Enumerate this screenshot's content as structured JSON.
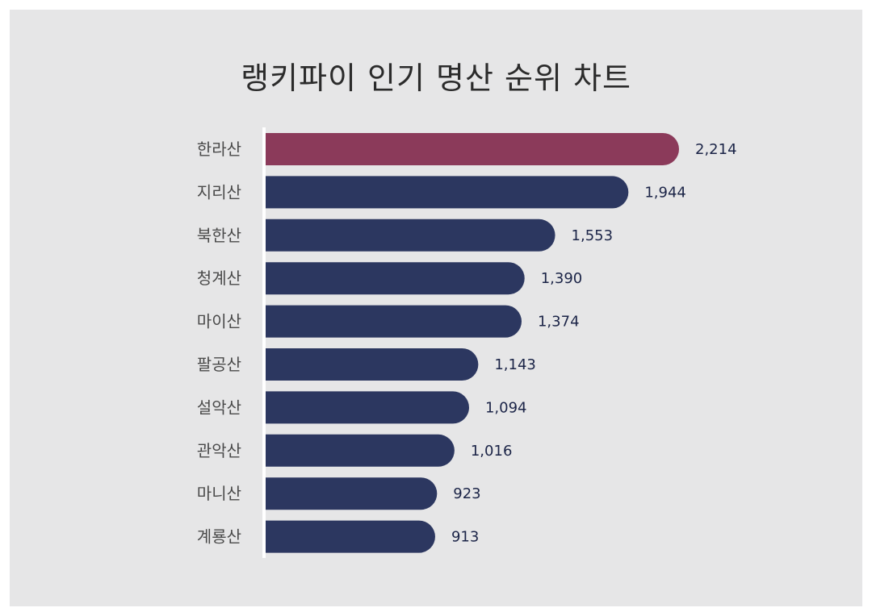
{
  "chart_data": {
    "type": "bar",
    "orientation": "horizontal",
    "title": "랭키파이 인기 명산 순위 차트",
    "categories": [
      "한라산",
      "지리산",
      "북한산",
      "청계산",
      "마이산",
      "팔공산",
      "설악산",
      "관악산",
      "마니산",
      "계룡산"
    ],
    "values": [
      2214,
      1944,
      1553,
      1390,
      1374,
      1143,
      1094,
      1016,
      923,
      913
    ],
    "value_labels": [
      "2,214",
      "1,944",
      "1,553",
      "1,390",
      "1,374",
      "1,143",
      "1,094",
      "1,016",
      "923",
      "913"
    ],
    "highlight_index": 0,
    "colors": {
      "highlight": "#8b3a5a",
      "highlight_label": "#7a2a44",
      "bar": "#2c3760",
      "label": "#1b2447",
      "background": "#e6e6e7"
    },
    "xlim": [
      0,
      2214
    ],
    "grid": false,
    "legend": "none"
  }
}
